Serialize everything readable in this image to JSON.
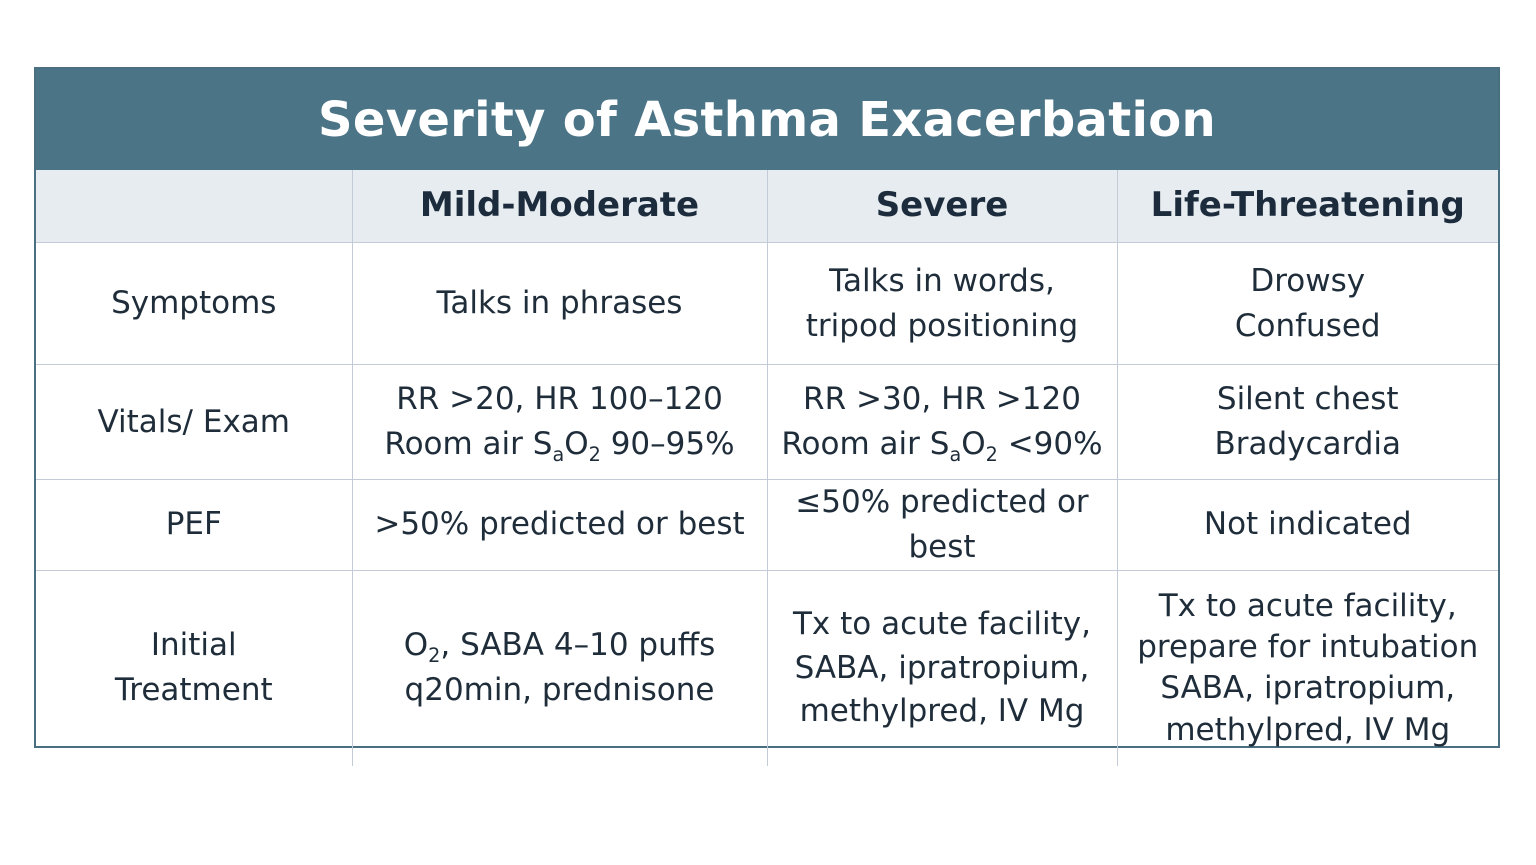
{
  "title": "Severity of Asthma Exacerbation",
  "columns": [
    "",
    "Mild-Moderate",
    "Severe",
    "Life-Threatening"
  ],
  "rows": [
    {
      "label": [
        "Symptoms"
      ],
      "mild": [
        "Talks in phrases"
      ],
      "severe": [
        "Talks in words,",
        "tripod positioning"
      ],
      "life": [
        "Drowsy",
        "Confused"
      ]
    },
    {
      "label": [
        "Vitals/ Exam"
      ],
      "mild": [
        "RR >20, HR 100–120",
        "Room air SaO2 90–95%"
      ],
      "severe": [
        "RR >30, HR >120",
        "Room air SaO2 <90%"
      ],
      "life": [
        "Silent chest",
        "Bradycardia"
      ]
    },
    {
      "label": [
        "PEF"
      ],
      "mild": [
        ">50% predicted or best"
      ],
      "severe": [
        "≤50% predicted or best"
      ],
      "life": [
        "Not indicated"
      ]
    },
    {
      "label": [
        "Initial",
        "Treatment"
      ],
      "mild": [
        "O2, SABA 4–10 puffs",
        "q20min, prednisone"
      ],
      "severe": [
        "Tx to acute facility,",
        "SABA, ipratropium,",
        "methylpred, IV Mg"
      ],
      "life": [
        "Tx to acute facility,",
        "prepare for intubation",
        "SABA, ipratropium,",
        "methylpred, IV Mg"
      ]
    }
  ],
  "colors": {
    "header_bg": "#4b7486",
    "column_header_bg": "#e6ecf0",
    "grid": "#c3ccd6",
    "text": "#1f2d3a"
  }
}
